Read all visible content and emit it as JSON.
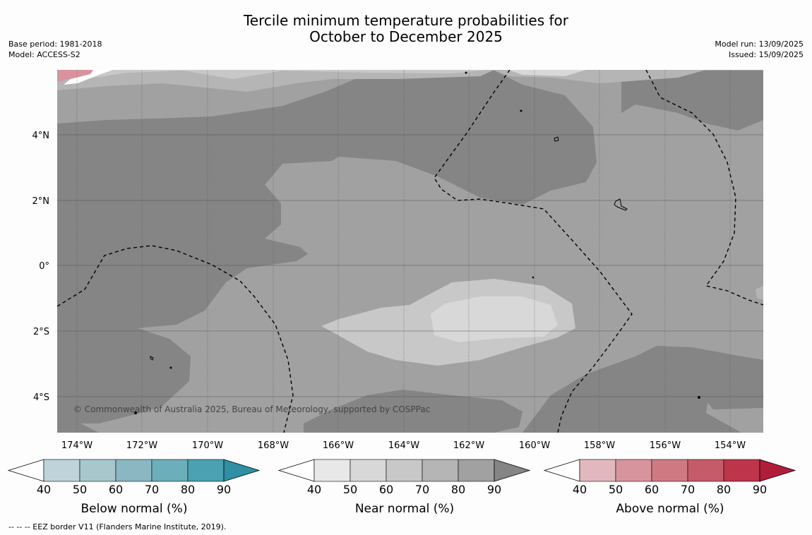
{
  "header": {
    "title_line1": "Tercile minimum temperature probabilities for",
    "title_line2": "October to December 2025",
    "base_period": "Base period: 1981-2018",
    "model": "Model: ACCESS-S2",
    "model_run": "Model run: 13/09/2025",
    "issued": "Issued: 15/09/2025"
  },
  "map": {
    "copyright": "© Commonwealth of Australia 2025, Bureau of Meteorology, supported by COSPPac",
    "lon_ticks": [
      "174°W",
      "172°W",
      "170°W",
      "168°W",
      "166°W",
      "164°W",
      "162°W",
      "160°W",
      "158°W",
      "156°W",
      "154°W"
    ],
    "lat_ticks": [
      "4°N",
      "2°N",
      "0°",
      "2°S",
      "4°S"
    ],
    "background_color": "#a1a1a1"
  },
  "chart_data": {
    "type": "heatmap",
    "title": "Tercile minimum temperature probabilities for October to December 2025",
    "xlim": [
      "174.6°W",
      "153.0°W"
    ],
    "ylim": [
      "5.1°S",
      "6.0°N"
    ],
    "categories": [
      "Below normal",
      "Near normal",
      "Above normal"
    ],
    "dominant_category": "Near normal",
    "probability_levels": [
      40,
      50,
      60,
      70,
      80,
      90
    ],
    "probability_range_shown": "50-80% Near normal; small area 50% Above normal at top-left",
    "grid": true
  },
  "legend": {
    "ticks": [
      "40",
      "50",
      "60",
      "70",
      "80",
      "90"
    ],
    "below": {
      "label": "Below normal (%)",
      "colors": [
        "#bed4da",
        "#a7c7cc",
        "#8ab7c2",
        "#6daebb",
        "#4ba1b1",
        "#2f8fa3"
      ]
    },
    "near": {
      "label": "Near normal (%)",
      "colors": [
        "#e8e8e8",
        "#d8d8d8",
        "#c8c8c8",
        "#b5b5b5",
        "#a1a1a1",
        "#858585"
      ]
    },
    "above": {
      "label": "Above normal (%)",
      "colors": [
        "#e2b8be",
        "#d8949d",
        "#cf7a83",
        "#c55b69",
        "#bd344b",
        "#b01d3a"
      ]
    }
  },
  "footer": {
    "eez_note": "--  --  -- EEZ border V11 (Flanders Marine Institute, 2019)."
  }
}
